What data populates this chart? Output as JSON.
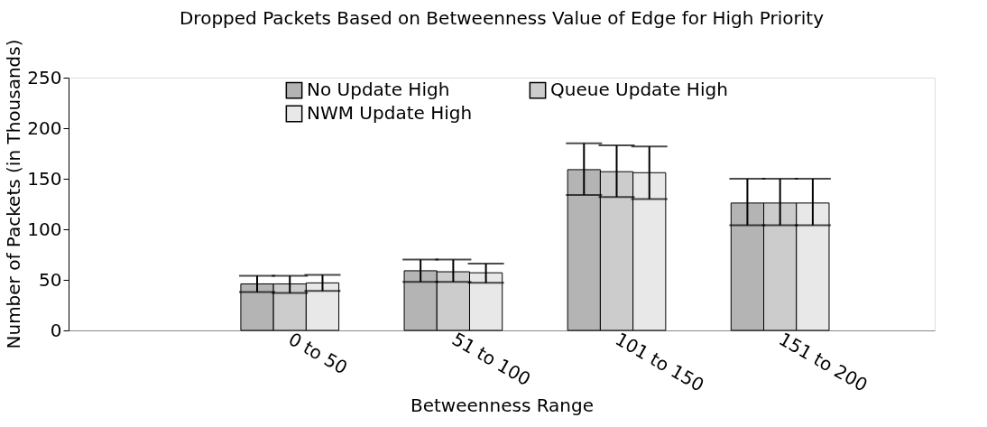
{
  "chart_data": {
    "type": "bar",
    "title": "Dropped Packets Based on Betweenness Value of Edge for High Priority",
    "xlabel": "Betweenness Range",
    "ylabel": "Number of Packets (in Thousands)",
    "categories": [
      "0 to 50",
      "51 to 100",
      "101 to 150",
      "151 to 200"
    ],
    "series": [
      {
        "name": "No Update High",
        "color": "#b4b4b4",
        "values": [
          46,
          59,
          159,
          126
        ],
        "errors": [
          [
            38,
            54
          ],
          [
            48,
            70
          ],
          [
            134,
            185
          ],
          [
            104,
            150
          ]
        ]
      },
      {
        "name": "Queue Update High",
        "color": "#cccccc",
        "values": [
          46,
          58,
          157,
          126
        ],
        "errors": [
          [
            37,
            54
          ],
          [
            48,
            70
          ],
          [
            132,
            183
          ],
          [
            104,
            150
          ]
        ]
      },
      {
        "name": "NWM Update High",
        "color": "#e8e8e8",
        "values": [
          47,
          57,
          156,
          126
        ],
        "errors": [
          [
            39,
            55
          ],
          [
            47,
            66
          ],
          [
            130,
            182
          ],
          [
            104,
            150
          ]
        ]
      }
    ],
    "ylim": [
      0,
      250
    ],
    "yticks": [
      0,
      50,
      100,
      150,
      200,
      250
    ],
    "grid": false,
    "legend": "top"
  }
}
